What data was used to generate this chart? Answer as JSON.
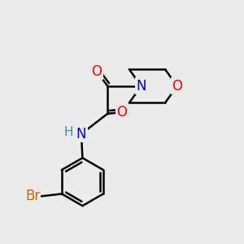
{
  "background_color": "#ebebeb",
  "bond_color": "#000000",
  "bond_width": 1.8,
  "atom_colors": {
    "O": "#ff0000",
    "N": "#0000cc",
    "Br": "#cc6600",
    "H": "#3a9090",
    "C": "#000000"
  },
  "font_size": 12
}
